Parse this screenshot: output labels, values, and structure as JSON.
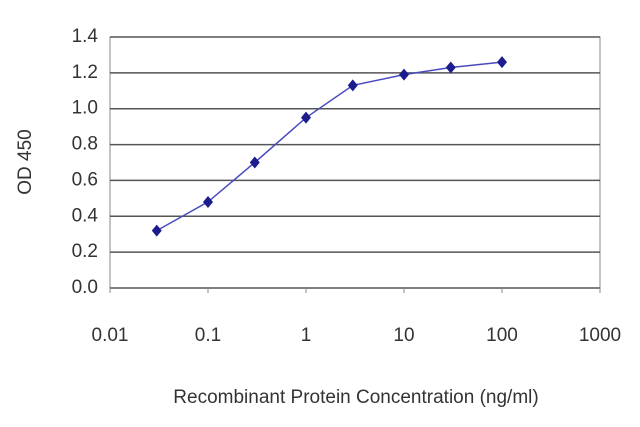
{
  "chart_data": {
    "type": "line",
    "x_label": "Recombinant Protein Concentration (ng/ml)",
    "y_label": "OD 450",
    "x": [
      0.03,
      0.1,
      0.3,
      1,
      3,
      10,
      30,
      100
    ],
    "series": [
      {
        "color": "#1c1c8e",
        "values": [
          0.32,
          0.48,
          0.7,
          0.95,
          1.13,
          1.19,
          1.23,
          1.26
        ]
      }
    ],
    "xlog": true,
    "xlim": [
      0.01,
      1000
    ],
    "xticks": [
      0.01,
      0.1,
      1,
      10,
      100,
      1000
    ],
    "ylim": [
      0,
      1.4
    ],
    "yticks": [
      {
        "value": 0,
        "label": "0.0"
      },
      0.2,
      0.4,
      0.6,
      0.8,
      {
        "value": 1,
        "label": "1.0"
      },
      1.2,
      1.4
    ],
    "grid": true
  }
}
